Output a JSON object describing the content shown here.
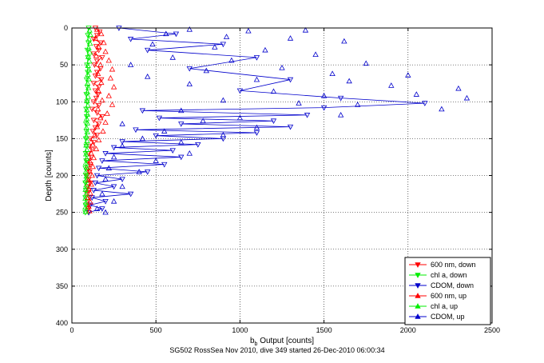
{
  "chart_data": {
    "type": "scatter",
    "xlabel_main": "b",
    "xlabel_sub": "b",
    "xlabel_rest": " Output [counts]",
    "ylabel": "Depth [counts]",
    "caption": "SG502 RossSea Nov 2010, dive 349 started 26-Dec-2010 06:00:34",
    "xlim": [
      0,
      2500
    ],
    "ylim": [
      0,
      400
    ],
    "y_reversed": true,
    "grid": true,
    "grid_style": "dotted",
    "legend_position": "bottom-right",
    "xticks": [
      0,
      500,
      1000,
      1500,
      2000,
      2500
    ],
    "yticks": [
      0,
      50,
      100,
      150,
      200,
      250,
      300,
      350,
      400
    ],
    "xtick_labels": [
      "0",
      "500",
      "1000",
      "1500",
      "2000",
      "2500"
    ],
    "ytick_labels": [
      "0",
      "50",
      "100",
      "150",
      "200",
      "250",
      "300",
      "350",
      "400"
    ],
    "series": [
      {
        "name": "600 nm, down",
        "color": "#ff0000",
        "marker": "triangle-down",
        "line": true,
        "points": [
          [
            140,
            0
          ],
          [
            165,
            5
          ],
          [
            150,
            10
          ],
          [
            130,
            15
          ],
          [
            170,
            20
          ],
          [
            145,
            25
          ],
          [
            160,
            30
          ],
          [
            130,
            35
          ],
          [
            180,
            40
          ],
          [
            150,
            45
          ],
          [
            135,
            50
          ],
          [
            170,
            55
          ],
          [
            150,
            60
          ],
          [
            140,
            65
          ],
          [
            175,
            70
          ],
          [
            130,
            75
          ],
          [
            160,
            80
          ],
          [
            140,
            85
          ],
          [
            155,
            90
          ],
          [
            145,
            95
          ],
          [
            130,
            100
          ],
          [
            160,
            105
          ],
          [
            120,
            110
          ],
          [
            150,
            115
          ],
          [
            180,
            120
          ],
          [
            130,
            125
          ],
          [
            160,
            130
          ],
          [
            140,
            135
          ],
          [
            125,
            140
          ],
          [
            150,
            145
          ],
          [
            110,
            150
          ],
          [
            130,
            155
          ],
          [
            105,
            160
          ],
          [
            120,
            165
          ],
          [
            100,
            170
          ],
          [
            115,
            175
          ],
          [
            95,
            180
          ],
          [
            110,
            185
          ],
          [
            95,
            190
          ],
          [
            105,
            195
          ],
          [
            90,
            200
          ],
          [
            100,
            205
          ],
          [
            110,
            210
          ],
          [
            95,
            215
          ],
          [
            100,
            220
          ],
          [
            90,
            225
          ],
          [
            105,
            230
          ],
          [
            95,
            235
          ],
          [
            100,
            240
          ],
          [
            95,
            245
          ],
          [
            100,
            250
          ]
        ]
      },
      {
        "name": "chl a, down",
        "color": "#00ee00",
        "marker": "triangle-down",
        "line": true,
        "points": [
          [
            100,
            0
          ],
          [
            95,
            10
          ],
          [
            98,
            20
          ],
          [
            92,
            30
          ],
          [
            96,
            40
          ],
          [
            90,
            50
          ],
          [
            94,
            60
          ],
          [
            88,
            70
          ],
          [
            92,
            80
          ],
          [
            86,
            90
          ],
          [
            90,
            100
          ],
          [
            85,
            110
          ],
          [
            88,
            120
          ],
          [
            84,
            130
          ],
          [
            87,
            140
          ],
          [
            83,
            150
          ],
          [
            86,
            160
          ],
          [
            82,
            170
          ],
          [
            85,
            180
          ],
          [
            81,
            190
          ],
          [
            84,
            200
          ],
          [
            80,
            210
          ],
          [
            83,
            220
          ],
          [
            80,
            230
          ],
          [
            82,
            240
          ],
          [
            80,
            250
          ]
        ]
      },
      {
        "name": "CDOM, down",
        "color": "#0000cc",
        "marker": "triangle-down",
        "line": true,
        "points": [
          [
            280,
            0
          ],
          [
            620,
            8
          ],
          [
            350,
            15
          ],
          [
            900,
            22
          ],
          [
            450,
            30
          ],
          [
            1100,
            40
          ],
          [
            700,
            55
          ],
          [
            1300,
            70
          ],
          [
            1000,
            85
          ],
          [
            1600,
            95
          ],
          [
            2100,
            102
          ],
          [
            1500,
            108
          ],
          [
            420,
            112
          ],
          [
            1400,
            118
          ],
          [
            520,
            122
          ],
          [
            1200,
            126
          ],
          [
            650,
            130
          ],
          [
            1300,
            134
          ],
          [
            380,
            138
          ],
          [
            1100,
            142
          ],
          [
            500,
            146
          ],
          [
            900,
            150
          ],
          [
            300,
            154
          ],
          [
            750,
            158
          ],
          [
            250,
            162
          ],
          [
            600,
            166
          ],
          [
            200,
            170
          ],
          [
            650,
            175
          ],
          [
            180,
            180
          ],
          [
            550,
            185
          ],
          [
            160,
            190
          ],
          [
            450,
            195
          ],
          [
            150,
            200
          ],
          [
            300,
            205
          ],
          [
            140,
            210
          ],
          [
            250,
            215
          ],
          [
            130,
            220
          ],
          [
            350,
            225
          ],
          [
            120,
            230
          ],
          [
            200,
            235
          ],
          [
            110,
            240
          ],
          [
            180,
            245
          ],
          [
            100,
            250
          ]
        ]
      },
      {
        "name": "600 nm, up",
        "color": "#ff0000",
        "marker": "triangle-up",
        "line": false,
        "points": [
          [
            150,
            2
          ],
          [
            175,
            8
          ],
          [
            140,
            14
          ],
          [
            190,
            20
          ],
          [
            160,
            26
          ],
          [
            200,
            32
          ],
          [
            145,
            38
          ],
          [
            220,
            44
          ],
          [
            170,
            50
          ],
          [
            240,
            56
          ],
          [
            155,
            62
          ],
          [
            230,
            68
          ],
          [
            175,
            74
          ],
          [
            250,
            80
          ],
          [
            160,
            86
          ],
          [
            220,
            92
          ],
          [
            180,
            98
          ],
          [
            240,
            104
          ],
          [
            155,
            110
          ],
          [
            210,
            116
          ],
          [
            170,
            122
          ],
          [
            200,
            128
          ],
          [
            150,
            134
          ],
          [
            185,
            140
          ],
          [
            135,
            146
          ],
          [
            160,
            152
          ],
          [
            125,
            158
          ],
          [
            145,
            164
          ],
          [
            115,
            170
          ],
          [
            130,
            176
          ],
          [
            110,
            182
          ],
          [
            125,
            188
          ],
          [
            105,
            194
          ],
          [
            120,
            200
          ],
          [
            100,
            206
          ],
          [
            115,
            212
          ],
          [
            100,
            218
          ],
          [
            110,
            224
          ],
          [
            95,
            230
          ],
          [
            110,
            236
          ],
          [
            100,
            242
          ],
          [
            105,
            248
          ]
        ]
      },
      {
        "name": "chl a, up",
        "color": "#00ee00",
        "marker": "triangle-up",
        "line": false,
        "points": [
          [
            105,
            3
          ],
          [
            110,
            9
          ],
          [
            102,
            15
          ],
          [
            108,
            21
          ],
          [
            100,
            27
          ],
          [
            106,
            33
          ],
          [
            98,
            39
          ],
          [
            104,
            45
          ],
          [
            96,
            51
          ],
          [
            102,
            57
          ],
          [
            95,
            63
          ],
          [
            100,
            69
          ],
          [
            93,
            75
          ],
          [
            98,
            81
          ],
          [
            92,
            87
          ],
          [
            96,
            93
          ],
          [
            90,
            99
          ],
          [
            95,
            105
          ],
          [
            89,
            111
          ],
          [
            93,
            117
          ],
          [
            88,
            123
          ],
          [
            92,
            129
          ],
          [
            87,
            135
          ],
          [
            91,
            141
          ],
          [
            86,
            147
          ],
          [
            90,
            153
          ],
          [
            85,
            159
          ],
          [
            89,
            165
          ],
          [
            84,
            171
          ],
          [
            88,
            177
          ],
          [
            83,
            183
          ],
          [
            87,
            189
          ],
          [
            82,
            195
          ],
          [
            86,
            201
          ],
          [
            82,
            207
          ],
          [
            85,
            213
          ],
          [
            81,
            219
          ],
          [
            84,
            225
          ],
          [
            80,
            231
          ],
          [
            83,
            237
          ],
          [
            80,
            243
          ],
          [
            82,
            249
          ]
        ]
      },
      {
        "name": "CDOM, up",
        "color": "#0000cc",
        "marker": "triangle-up",
        "line": false,
        "points": [
          [
            700,
            2
          ],
          [
            1050,
            4
          ],
          [
            1390,
            3
          ],
          [
            560,
            8
          ],
          [
            920,
            12
          ],
          [
            1300,
            14
          ],
          [
            1620,
            18
          ],
          [
            480,
            22
          ],
          [
            850,
            26
          ],
          [
            1150,
            30
          ],
          [
            1450,
            36
          ],
          [
            600,
            40
          ],
          [
            950,
            44
          ],
          [
            1750,
            48
          ],
          [
            350,
            50
          ],
          [
            1250,
            54
          ],
          [
            800,
            58
          ],
          [
            1550,
            62
          ],
          [
            2000,
            64
          ],
          [
            450,
            66
          ],
          [
            1100,
            70
          ],
          [
            1650,
            72
          ],
          [
            700,
            76
          ],
          [
            1900,
            78
          ],
          [
            2300,
            82
          ],
          [
            1200,
            86
          ],
          [
            2050,
            90
          ],
          [
            1500,
            92
          ],
          [
            2350,
            95
          ],
          [
            900,
            98
          ],
          [
            1350,
            102
          ],
          [
            1700,
            104
          ],
          [
            2200,
            110
          ],
          [
            650,
            112
          ],
          [
            1600,
            118
          ],
          [
            1000,
            122
          ],
          [
            780,
            126
          ],
          [
            300,
            130
          ],
          [
            1100,
            135
          ],
          [
            550,
            140
          ],
          [
            900,
            145
          ],
          [
            420,
            150
          ],
          [
            650,
            155
          ],
          [
            300,
            160
          ],
          [
            700,
            170
          ],
          [
            250,
            175
          ],
          [
            500,
            180
          ],
          [
            220,
            190
          ],
          [
            400,
            195
          ],
          [
            200,
            205
          ],
          [
            300,
            215
          ],
          [
            180,
            225
          ],
          [
            250,
            235
          ],
          [
            150,
            245
          ],
          [
            200,
            250
          ]
        ]
      }
    ]
  }
}
